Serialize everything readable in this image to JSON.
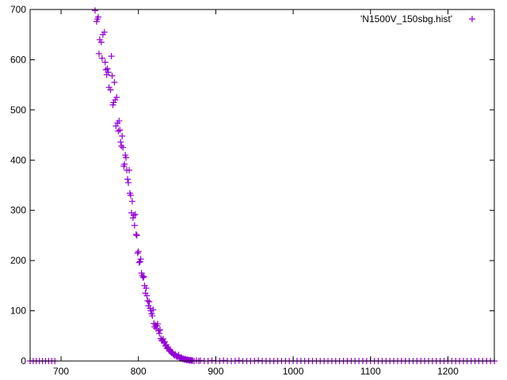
{
  "chart_data": {
    "type": "scatter",
    "title": "",
    "xlabel": "",
    "ylabel": "",
    "xlim": [
      660,
      1260
    ],
    "ylim": [
      0,
      700
    ],
    "x_ticks": [
      700,
      800,
      900,
      1000,
      1100,
      1200
    ],
    "y_ticks": [
      0,
      100,
      200,
      300,
      400,
      500,
      600,
      700
    ],
    "x_tick_labels": [
      "700",
      "800",
      "900",
      "1000",
      "1100",
      "1200"
    ],
    "y_tick_labels": [
      "0",
      "100",
      "200",
      "300",
      "400",
      "500",
      "600",
      "700"
    ],
    "grid": false,
    "legend_position": "top-right",
    "marker": "plus",
    "series": [
      {
        "name": "'N1500V_150sbg.hist'",
        "color": "#9400d3",
        "points": [
          [
            744,
            698
          ],
          [
            746,
            676
          ],
          [
            747,
            681
          ],
          [
            748,
            685
          ],
          [
            749,
            612
          ],
          [
            750,
            640
          ],
          [
            752,
            635
          ],
          [
            753,
            603
          ],
          [
            754,
            650
          ],
          [
            756,
            655
          ],
          [
            757,
            595
          ],
          [
            758,
            580
          ],
          [
            759,
            570
          ],
          [
            760,
            582
          ],
          [
            761,
            575
          ],
          [
            762,
            545
          ],
          [
            764,
            540
          ],
          [
            765,
            607
          ],
          [
            766,
            568
          ],
          [
            767,
            510
          ],
          [
            768,
            515
          ],
          [
            769,
            555
          ],
          [
            770,
            520
          ],
          [
            771,
            468
          ],
          [
            772,
            525
          ],
          [
            773,
            474
          ],
          [
            774,
            458
          ],
          [
            775,
            478
          ],
          [
            776,
            460
          ],
          [
            777,
            436
          ],
          [
            778,
            428
          ],
          [
            779,
            448
          ],
          [
            780,
            425
          ],
          [
            781,
            388
          ],
          [
            782,
            392
          ],
          [
            783,
            410
          ],
          [
            784,
            405
          ],
          [
            785,
            380
          ],
          [
            786,
            362
          ],
          [
            787,
            355
          ],
          [
            788,
            380
          ],
          [
            789,
            334
          ],
          [
            790,
            330
          ],
          [
            791,
            295
          ],
          [
            792,
            318
          ],
          [
            793,
            285
          ],
          [
            794,
            290
          ],
          [
            795,
            270
          ],
          [
            796,
            292
          ],
          [
            797,
            252
          ],
          [
            798,
            250
          ],
          [
            799,
            215
          ],
          [
            800,
            218
          ],
          [
            801,
            196
          ],
          [
            802,
            198
          ],
          [
            803,
            203
          ],
          [
            804,
            175
          ],
          [
            805,
            170
          ],
          [
            806,
            166
          ],
          [
            807,
            168
          ],
          [
            808,
            150
          ],
          [
            809,
            135
          ],
          [
            810,
            145
          ],
          [
            811,
            130
          ],
          [
            812,
            120
          ],
          [
            813,
            110
          ],
          [
            814,
            118
          ],
          [
            815,
            105
          ],
          [
            816,
            100
          ],
          [
            817,
            94
          ],
          [
            818,
            90
          ],
          [
            819,
            102
          ],
          [
            820,
            75
          ],
          [
            821,
            68
          ],
          [
            822,
            72
          ],
          [
            823,
            65
          ],
          [
            824,
            70
          ],
          [
            825,
            74
          ],
          [
            826,
            60
          ],
          [
            827,
            55
          ],
          [
            828,
            62
          ],
          [
            829,
            45
          ],
          [
            830,
            42
          ],
          [
            831,
            40
          ],
          [
            832,
            44
          ],
          [
            833,
            36
          ],
          [
            834,
            38
          ],
          [
            835,
            30
          ],
          [
            836,
            32
          ],
          [
            837,
            25
          ],
          [
            838,
            28
          ],
          [
            839,
            24
          ],
          [
            840,
            20
          ],
          [
            841,
            22
          ],
          [
            842,
            18
          ],
          [
            843,
            16
          ],
          [
            844,
            18
          ],
          [
            845,
            14
          ],
          [
            846,
            12
          ],
          [
            847,
            11
          ],
          [
            848,
            13
          ],
          [
            849,
            9
          ],
          [
            850,
            10
          ],
          [
            851,
            8
          ],
          [
            852,
            12
          ],
          [
            853,
            7
          ],
          [
            854,
            6
          ],
          [
            855,
            5
          ],
          [
            856,
            6
          ],
          [
            857,
            4
          ],
          [
            858,
            5
          ],
          [
            859,
            3
          ],
          [
            860,
            4
          ],
          [
            861,
            3
          ],
          [
            862,
            2
          ],
          [
            863,
            3
          ],
          [
            864,
            2
          ],
          [
            865,
            2
          ],
          [
            866,
            1
          ],
          [
            867,
            2
          ],
          [
            868,
            1
          ],
          [
            869,
            1
          ],
          [
            870,
            1
          ],
          [
            872,
            0
          ],
          [
            875,
            1
          ],
          [
            878,
            0
          ],
          [
            880,
            1
          ],
          [
            885,
            0
          ],
          [
            890,
            0
          ],
          [
            895,
            1
          ],
          [
            900,
            0
          ],
          [
            905,
            0
          ],
          [
            910,
            1
          ],
          [
            915,
            0
          ],
          [
            920,
            0
          ],
          [
            925,
            0
          ],
          [
            930,
            1
          ],
          [
            935,
            0
          ],
          [
            940,
            0
          ],
          [
            945,
            0
          ],
          [
            950,
            0
          ],
          [
            955,
            1
          ],
          [
            960,
            0
          ],
          [
            965,
            0
          ],
          [
            970,
            0
          ],
          [
            975,
            0
          ],
          [
            980,
            0
          ],
          [
            985,
            0
          ],
          [
            990,
            0
          ],
          [
            995,
            0
          ],
          [
            1000,
            0
          ],
          [
            1005,
            0
          ],
          [
            1010,
            0
          ],
          [
            1015,
            0
          ],
          [
            1020,
            0
          ],
          [
            1025,
            0
          ],
          [
            1030,
            0
          ],
          [
            1035,
            0
          ],
          [
            1040,
            0
          ],
          [
            1045,
            0
          ],
          [
            1050,
            0
          ],
          [
            1055,
            0
          ],
          [
            1060,
            0
          ],
          [
            1065,
            0
          ],
          [
            1070,
            0
          ],
          [
            1075,
            0
          ],
          [
            1080,
            0
          ],
          [
            1085,
            0
          ],
          [
            1090,
            0
          ],
          [
            1095,
            0
          ],
          [
            1100,
            0
          ],
          [
            1105,
            0
          ],
          [
            1110,
            0
          ],
          [
            1115,
            0
          ],
          [
            1120,
            0
          ],
          [
            1125,
            0
          ],
          [
            1130,
            0
          ],
          [
            1135,
            0
          ],
          [
            1140,
            0
          ],
          [
            1145,
            0
          ],
          [
            1150,
            0
          ],
          [
            1155,
            0
          ],
          [
            1160,
            0
          ],
          [
            1165,
            0
          ],
          [
            1170,
            0
          ],
          [
            1175,
            0
          ],
          [
            1180,
            0
          ],
          [
            1185,
            0
          ],
          [
            1190,
            0
          ],
          [
            1195,
            0
          ],
          [
            1200,
            0
          ],
          [
            1205,
            0
          ],
          [
            1210,
            0
          ],
          [
            1215,
            0
          ],
          [
            1220,
            0
          ],
          [
            1225,
            0
          ],
          [
            1230,
            0
          ],
          [
            1235,
            0
          ],
          [
            1240,
            0
          ],
          [
            1245,
            0
          ],
          [
            1250,
            0
          ],
          [
            1255,
            0
          ],
          [
            1260,
            0
          ],
          [
            660,
            0
          ],
          [
            664,
            0
          ],
          [
            668,
            0
          ],
          [
            672,
            0
          ],
          [
            676,
            0
          ],
          [
            680,
            0
          ],
          [
            684,
            0
          ],
          [
            688,
            0
          ],
          [
            692,
            0
          ]
        ]
      }
    ]
  }
}
